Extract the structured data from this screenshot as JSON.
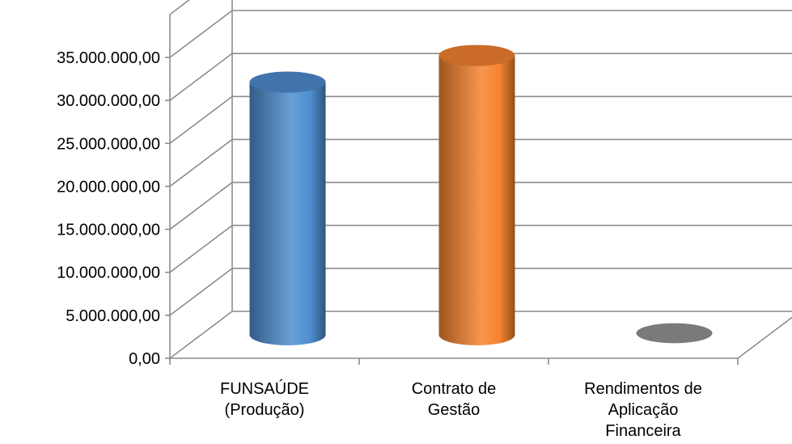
{
  "chart_data": {
    "type": "bar",
    "style": "3d-cylinder",
    "categories": [
      "FUNSAÚDE (Produção)",
      "Contrato de Gestão",
      "Rendimentos de Aplicação Financeira"
    ],
    "category_lines": [
      [
        "FUNSAÚDE",
        "(Produção)"
      ],
      [
        "Contrato de",
        "Gestão"
      ],
      [
        "Rendimentos de",
        "Aplicação",
        "Financeira"
      ]
    ],
    "values": [
      29400000,
      32500000,
      150000
    ],
    "colors": [
      "#4F8ED0",
      "#F6832F",
      "#7A7A7A"
    ],
    "ylim": [
      0,
      35000000
    ],
    "y_ticks": [
      0,
      5000000,
      10000000,
      15000000,
      20000000,
      25000000,
      30000000,
      35000000
    ],
    "y_tick_labels": [
      "0,00",
      "5.000.000,00",
      "10.000.000,00",
      "15.000.000,00",
      "20.000.000,00",
      "25.000.000,00",
      "30.000.000,00",
      "35.000.000,00"
    ],
    "grid": true,
    "legend": "none",
    "title": "",
    "xlabel": "",
    "ylabel": ""
  }
}
